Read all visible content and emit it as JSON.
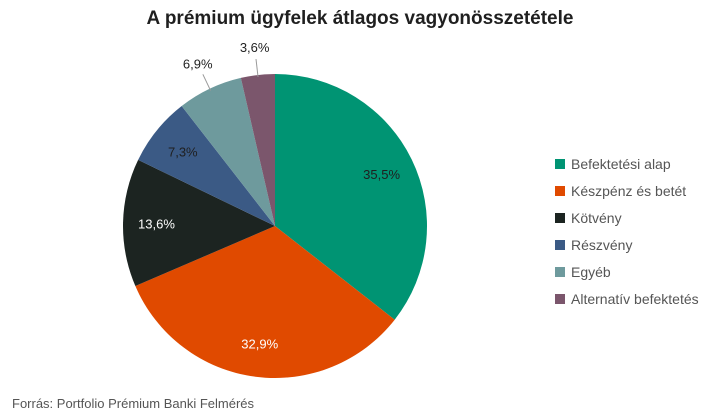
{
  "chart_data": {
    "type": "pie",
    "title": "A prémium ügyfelek átlagos vagyonösszetétele",
    "source": "Forrás: Portfolio Prémium Banki Felmérés",
    "legend_position": "right",
    "slices": [
      {
        "label": "Befektetési alap",
        "value": 35.5,
        "value_label": "35,5%",
        "color": "#009473",
        "label_color": "#1f1f1f"
      },
      {
        "label": "Készpénz és betét",
        "value": 32.9,
        "value_label": "32,9%",
        "color": "#e04a00",
        "label_color": "#ffffff"
      },
      {
        "label": "Kötvény",
        "value": 13.6,
        "value_label": "13,6%",
        "color": "#1c2421",
        "label_color": "#ffffff"
      },
      {
        "label": "Részvény",
        "value": 7.3,
        "value_label": "7,3%",
        "color": "#3b5a85",
        "label_color": "#1f1f1f"
      },
      {
        "label": "Egyéb",
        "value": 6.9,
        "value_label": "6,9%",
        "color": "#6e9a9d",
        "label_color": "#1f1f1f"
      },
      {
        "label": "Alternatív befektetés",
        "value": 3.6,
        "value_label": "3,6%",
        "color": "#7b566c",
        "label_color": "#1f1f1f"
      }
    ]
  }
}
